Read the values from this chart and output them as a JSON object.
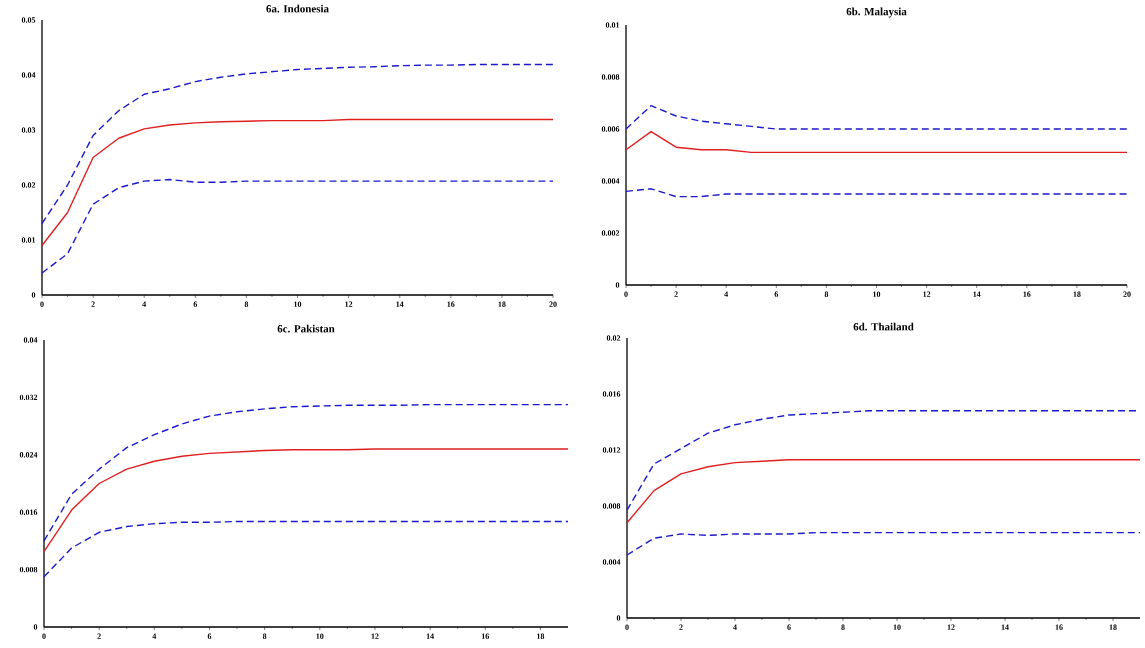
{
  "chart_data": [
    {
      "type": "line",
      "title": "6a. Indonesia",
      "x": [
        0,
        1,
        2,
        3,
        4,
        5,
        6,
        7,
        8,
        9,
        10,
        11,
        12,
        13,
        14,
        15,
        16,
        17,
        18,
        19,
        20
      ],
      "xlim": [
        0,
        20
      ],
      "ylim": [
        0,
        0.05
      ],
      "xticks": [
        0,
        2,
        4,
        6,
        8,
        10,
        12,
        14,
        16,
        18,
        20
      ],
      "yticks": [
        0,
        0.01,
        0.02,
        0.03,
        0.04,
        0.05
      ],
      "marker": "none",
      "series": [
        {
          "color": "#1a1acc",
          "line_style": "dashed",
          "values": [
            0.013,
            0.02,
            0.029,
            0.0335,
            0.0365,
            0.0375,
            0.0388,
            0.0396,
            0.0402,
            0.0406,
            0.041,
            0.0412,
            0.0414,
            0.0415,
            0.0417,
            0.0418,
            0.0418,
            0.0419,
            0.0419,
            0.0419,
            0.0419
          ]
        },
        {
          "color": "#e02020",
          "line_style": "solid",
          "values": [
            0.009,
            0.015,
            0.025,
            0.0285,
            0.0302,
            0.0309,
            0.0313,
            0.0315,
            0.0316,
            0.0317,
            0.0317,
            0.0317,
            0.0319,
            0.0319,
            0.0319,
            0.0319,
            0.0319,
            0.0319,
            0.0319,
            0.0319,
            0.0319
          ]
        },
        {
          "color": "#1a1acc",
          "line_style": "dashed",
          "values": [
            0.004,
            0.0075,
            0.0165,
            0.0195,
            0.0207,
            0.021,
            0.0205,
            0.0205,
            0.0207,
            0.0207,
            0.0207,
            0.0207,
            0.0207,
            0.0207,
            0.0207,
            0.0207,
            0.0207,
            0.0207,
            0.0207,
            0.0207,
            0.0207
          ]
        }
      ]
    },
    {
      "type": "line",
      "title": "6b. Malaysia",
      "x": [
        0,
        1,
        2,
        3,
        4,
        5,
        6,
        7,
        8,
        9,
        10,
        11,
        12,
        13,
        14,
        15,
        16,
        17,
        18,
        19,
        20
      ],
      "xlim": [
        0,
        20
      ],
      "ylim": [
        0,
        0.01
      ],
      "xticks": [
        0,
        2,
        4,
        6,
        8,
        10,
        12,
        14,
        16,
        18,
        20
      ],
      "yticks": [
        0,
        0.002,
        0.004,
        0.006,
        0.008,
        0.01
      ],
      "marker": "none",
      "series": [
        {
          "color": "#1a1acc",
          "line_style": "dashed",
          "values": [
            0.006,
            0.0069,
            0.0065,
            0.0063,
            0.0062,
            0.0061,
            0.006,
            0.006,
            0.006,
            0.006,
            0.006,
            0.006,
            0.006,
            0.006,
            0.006,
            0.006,
            0.006,
            0.006,
            0.006,
            0.006,
            0.006
          ]
        },
        {
          "color": "#e02020",
          "line_style": "solid",
          "values": [
            0.0052,
            0.0059,
            0.0053,
            0.0052,
            0.0052,
            0.0051,
            0.0051,
            0.0051,
            0.0051,
            0.0051,
            0.0051,
            0.0051,
            0.0051,
            0.0051,
            0.0051,
            0.0051,
            0.0051,
            0.0051,
            0.0051,
            0.0051,
            0.0051
          ]
        },
        {
          "color": "#1a1acc",
          "line_style": "dashed",
          "values": [
            0.0036,
            0.0037,
            0.0034,
            0.0034,
            0.0035,
            0.0035,
            0.0035,
            0.0035,
            0.0035,
            0.0035,
            0.0035,
            0.0035,
            0.0035,
            0.0035,
            0.0035,
            0.0035,
            0.0035,
            0.0035,
            0.0035,
            0.0035,
            0.0035
          ]
        }
      ]
    },
    {
      "type": "line",
      "title": "6c. Pakistan",
      "x": [
        0,
        1,
        2,
        3,
        4,
        5,
        6,
        7,
        8,
        9,
        10,
        11,
        12,
        13,
        14,
        15,
        16,
        17,
        18,
        19
      ],
      "xlim": [
        0,
        19
      ],
      "ylim": [
        0,
        0.04
      ],
      "xticks": [
        0,
        2,
        4,
        6,
        8,
        10,
        12,
        14,
        16,
        18
      ],
      "yticks": [
        0,
        0.008,
        0.016,
        0.024,
        0.032,
        0.04
      ],
      "marker": "none",
      "series": [
        {
          "color": "#1a1acc",
          "line_style": "dashed",
          "values": [
            0.012,
            0.0185,
            0.022,
            0.025,
            0.0268,
            0.0283,
            0.0294,
            0.03,
            0.0304,
            0.0307,
            0.0308,
            0.0309,
            0.0309,
            0.0309,
            0.031,
            0.031,
            0.031,
            0.031,
            0.031,
            0.031
          ]
        },
        {
          "color": "#e02020",
          "line_style": "solid",
          "values": [
            0.0105,
            0.0163,
            0.02,
            0.022,
            0.0231,
            0.0238,
            0.0242,
            0.0244,
            0.0246,
            0.0247,
            0.0247,
            0.0247,
            0.0248,
            0.0248,
            0.0248,
            0.0248,
            0.0248,
            0.0248,
            0.0248,
            0.0248
          ]
        },
        {
          "color": "#1a1acc",
          "line_style": "dashed",
          "values": [
            0.007,
            0.011,
            0.0132,
            0.014,
            0.0144,
            0.0146,
            0.0146,
            0.0147,
            0.0147,
            0.0147,
            0.0147,
            0.0147,
            0.0147,
            0.0147,
            0.0147,
            0.0147,
            0.0147,
            0.0147,
            0.0147,
            0.0147
          ]
        }
      ]
    },
    {
      "type": "line",
      "title": "6d. Thailand",
      "x": [
        0,
        1,
        2,
        3,
        4,
        5,
        6,
        7,
        8,
        9,
        10,
        11,
        12,
        13,
        14,
        15,
        16,
        17,
        18,
        19
      ],
      "xlim": [
        0,
        19
      ],
      "ylim": [
        0,
        0.02
      ],
      "xticks": [
        0,
        2,
        4,
        6,
        8,
        10,
        12,
        14,
        16,
        18
      ],
      "yticks": [
        0,
        0.004,
        0.008,
        0.012,
        0.016,
        0.02
      ],
      "marker": "none",
      "series": [
        {
          "color": "#1a1acc",
          "line_style": "dashed",
          "values": [
            0.0077,
            0.011,
            0.0121,
            0.0132,
            0.0138,
            0.0142,
            0.0145,
            0.0146,
            0.0147,
            0.0148,
            0.0148,
            0.0148,
            0.0148,
            0.0148,
            0.0148,
            0.0148,
            0.0148,
            0.0148,
            0.0148,
            0.0148
          ]
        },
        {
          "color": "#e02020",
          "line_style": "solid",
          "values": [
            0.0068,
            0.0091,
            0.0103,
            0.0108,
            0.0111,
            0.0112,
            0.0113,
            0.0113,
            0.0113,
            0.0113,
            0.0113,
            0.0113,
            0.0113,
            0.0113,
            0.0113,
            0.0113,
            0.0113,
            0.0113,
            0.0113,
            0.0113
          ]
        },
        {
          "color": "#1a1acc",
          "line_style": "dashed",
          "values": [
            0.0045,
            0.0057,
            0.006,
            0.0059,
            0.006,
            0.006,
            0.006,
            0.0061,
            0.0061,
            0.0061,
            0.0061,
            0.0061,
            0.0061,
            0.0061,
            0.0061,
            0.0061,
            0.0061,
            0.0061,
            0.0061,
            0.0061
          ]
        }
      ]
    }
  ]
}
